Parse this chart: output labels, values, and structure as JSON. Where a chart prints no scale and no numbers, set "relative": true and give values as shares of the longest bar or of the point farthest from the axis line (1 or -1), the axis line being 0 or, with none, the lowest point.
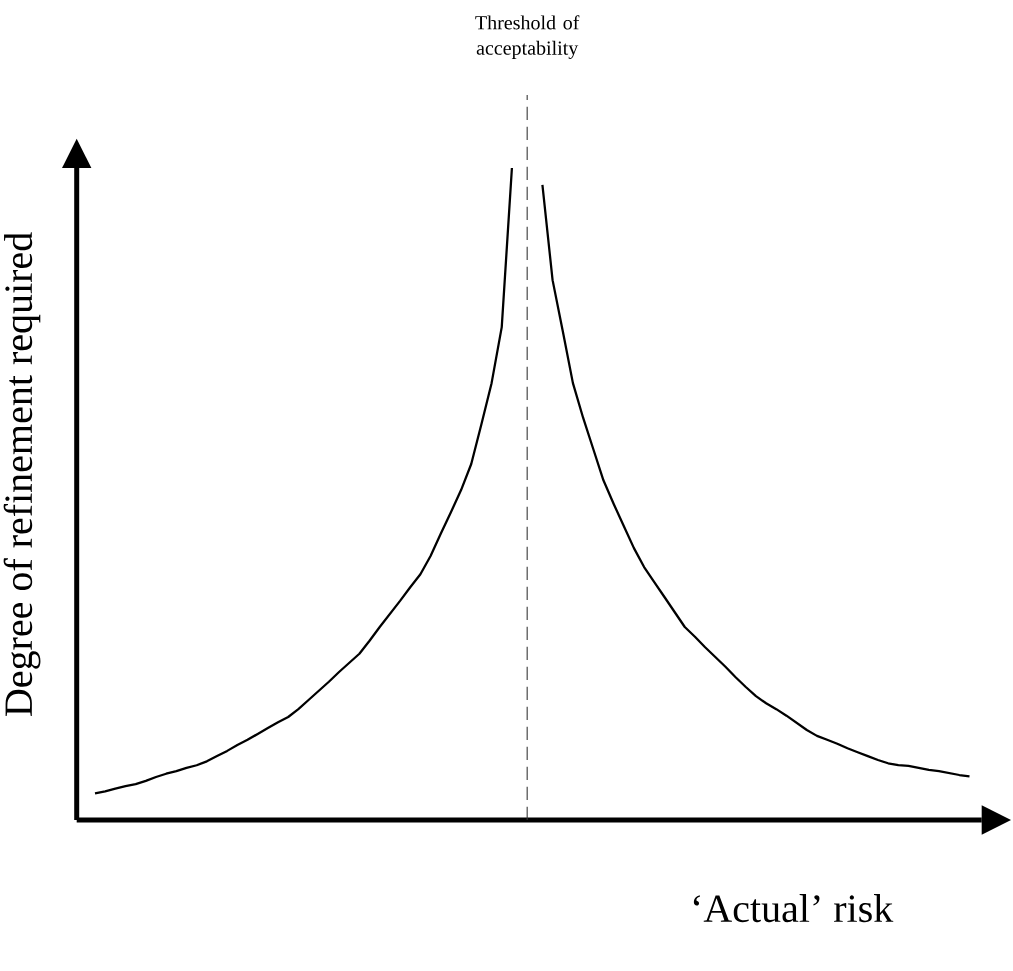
{
  "chart_data": {
    "type": "line",
    "relative": true,
    "marker": "none",
    "line_style": "solid",
    "xlabel": "‘Actual’ risk",
    "ylabel": "Degree of refinement required",
    "categories": [
      null,
      null,
      null,
      null,
      null,
      null,
      null,
      null,
      null,
      null,
      null,
      null,
      null,
      null,
      null,
      null,
      null,
      null,
      null,
      null,
      null,
      null,
      null,
      null,
      null,
      null,
      null,
      null,
      null,
      null,
      null,
      null,
      null,
      null,
      null,
      null,
      null,
      null,
      null,
      null,
      null,
      null,
      null,
      null,
      null,
      null,
      null,
      null,
      null,
      null,
      null,
      null,
      null,
      null,
      null,
      null,
      null,
      null,
      null,
      null,
      null,
      null,
      null,
      null,
      null,
      null,
      null,
      null,
      null,
      null,
      null,
      null,
      null,
      null,
      null,
      null,
      null,
      null,
      null,
      null,
      null,
      null,
      null,
      null,
      null,
      null,
      null
    ],
    "series": [
      {
        "color": "#000000",
        "values": [
          0.041,
          0.044,
          0.048,
          0.052,
          0.055,
          0.06,
          0.066,
          0.071,
          0.075,
          0.08,
          0.084,
          0.09,
          0.098,
          0.106,
          0.115,
          0.123,
          0.132,
          0.141,
          0.15,
          0.158,
          0.17,
          0.184,
          0.198,
          0.212,
          0.227,
          0.241,
          0.255,
          0.275,
          0.296,
          0.316,
          0.336,
          0.357,
          0.377,
          0.405,
          0.439,
          0.472,
          0.506,
          0.546,
          0.607,
          0.67,
          0.756,
          1,
          null,
          null,
          null,
          null,
          null,
          null,
          null,
          null,
          null,
          null,
          null,
          null,
          null,
          null,
          null,
          null,
          null,
          null,
          null,
          null,
          null,
          null,
          null,
          null,
          null,
          null,
          null,
          null,
          null,
          null,
          null,
          null,
          null,
          null,
          null,
          null,
          null,
          null,
          null,
          null,
          null,
          null,
          null,
          null,
          null
        ]
      },
      {
        "color": "#000000",
        "values": [
          null,
          null,
          null,
          null,
          null,
          null,
          null,
          null,
          null,
          null,
          null,
          null,
          null,
          null,
          null,
          null,
          null,
          null,
          null,
          null,
          null,
          null,
          null,
          null,
          null,
          null,
          null,
          null,
          null,
          null,
          null,
          null,
          null,
          null,
          null,
          null,
          null,
          null,
          null,
          null,
          null,
          null,
          null,
          null,
          0.974,
          0.828,
          0.75,
          0.67,
          0.617,
          0.569,
          0.521,
          0.485,
          0.451,
          0.417,
          0.388,
          0.365,
          0.342,
          0.319,
          0.296,
          0.281,
          0.265,
          0.25,
          0.235,
          0.219,
          0.204,
          0.19,
          0.179,
          0.17,
          0.16,
          0.149,
          0.138,
          0.129,
          0.123,
          0.117,
          0.11,
          0.104,
          0.098,
          0.092,
          0.087,
          0.084,
          0.083,
          0.08,
          0.077,
          0.075,
          0.072,
          0.069,
          0.067
        ]
      }
    ],
    "annotations": [
      "Threshold of acceptability"
    ]
  }
}
